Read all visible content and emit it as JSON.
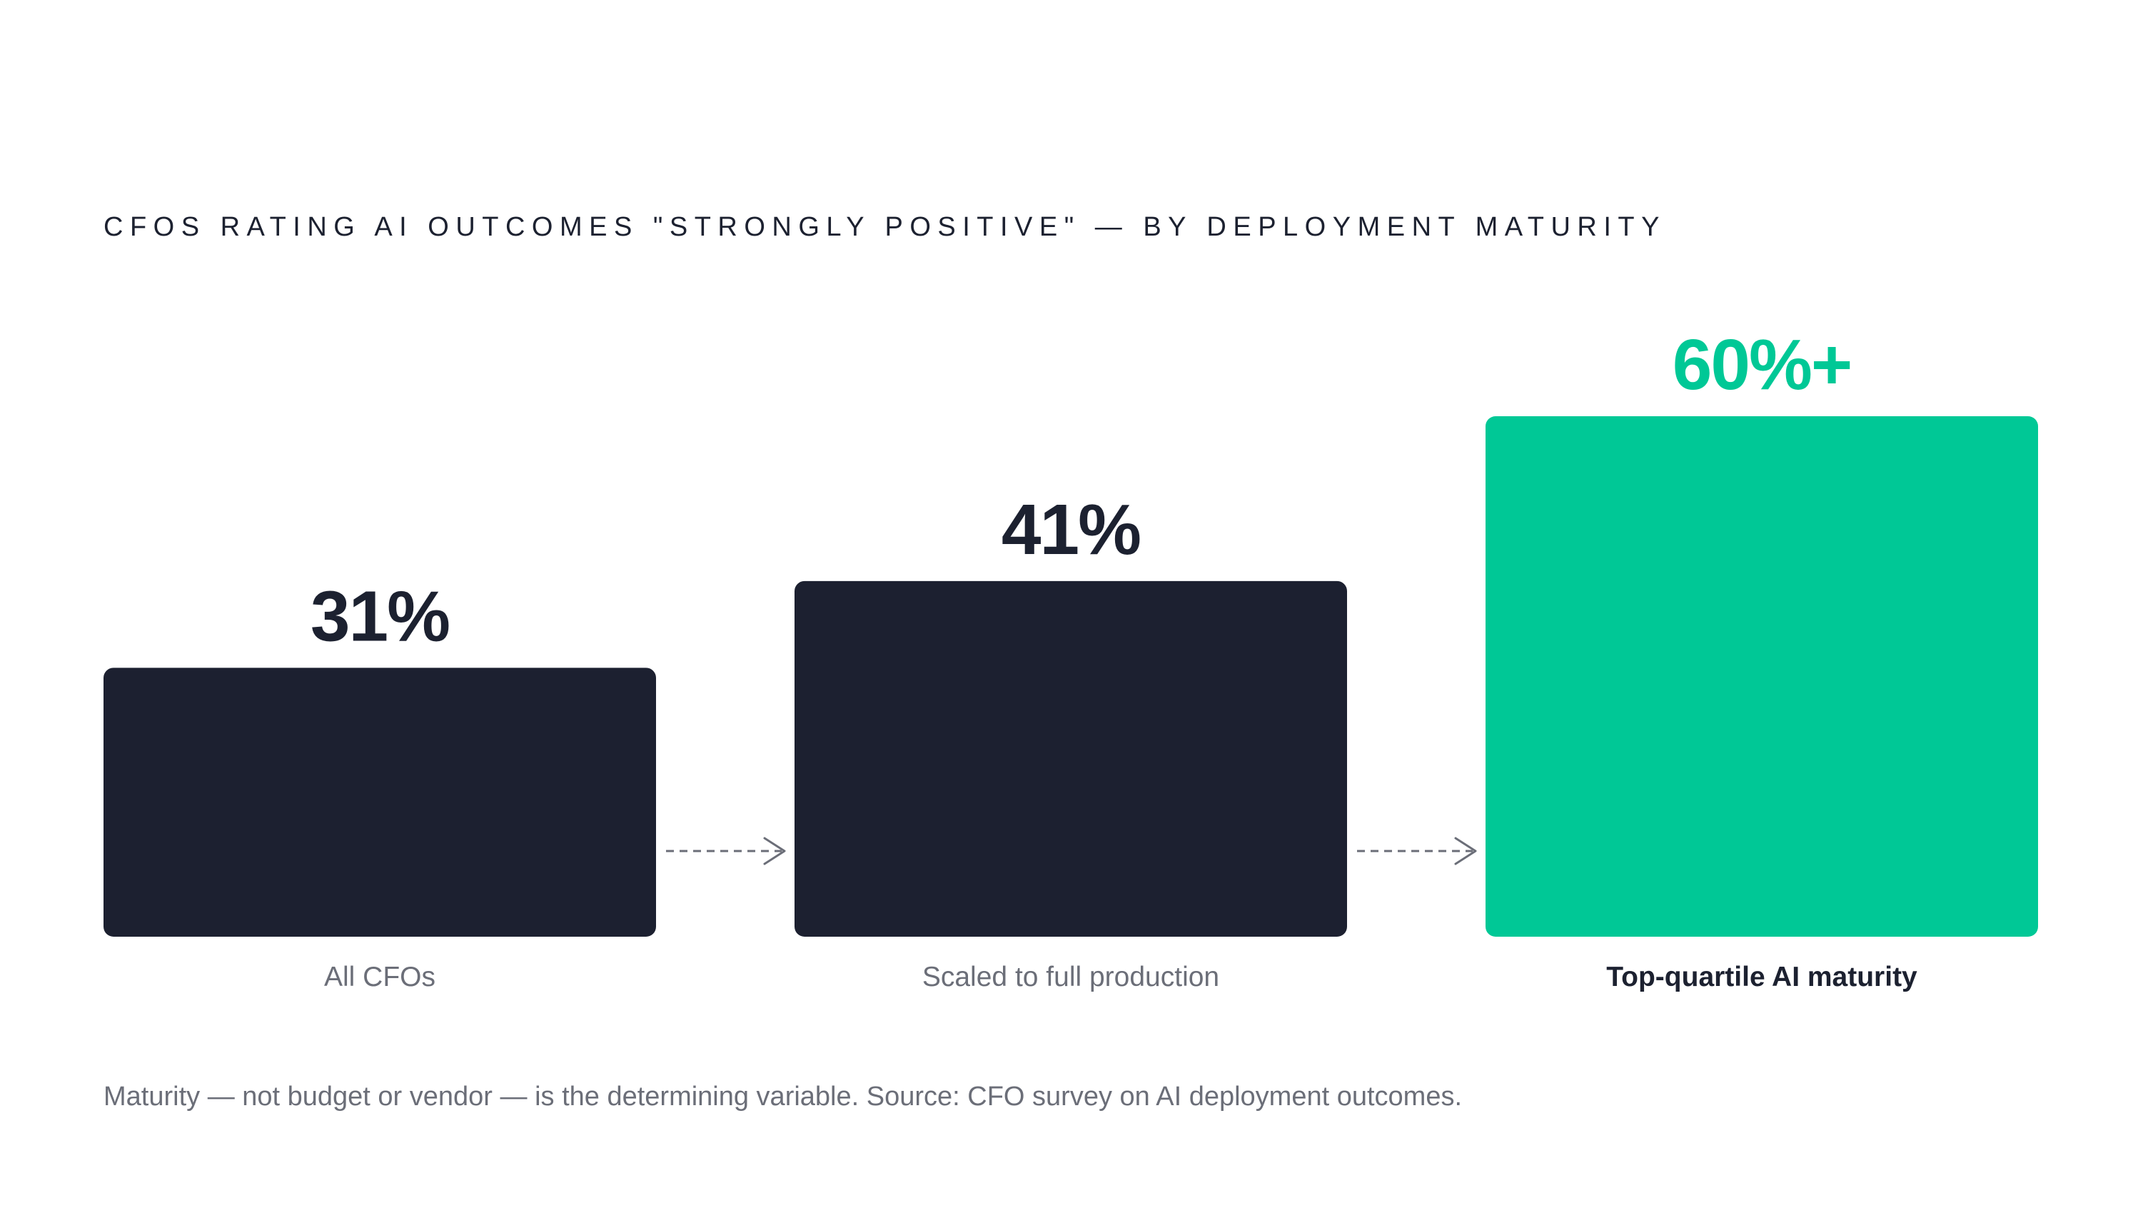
{
  "chart_data": {
    "type": "bar",
    "title": "CFOS RATING AI OUTCOMES \"STRONGLY POSITIVE\" — BY DEPLOYMENT MATURITY",
    "categories": [
      "All CFOs",
      "Scaled to full production",
      "Top-quartile AI maturity"
    ],
    "values": [
      31,
      41,
      60
    ],
    "value_labels": [
      "31%",
      "41%",
      "60%+"
    ],
    "highlight_index": 2,
    "connectors": "dashed arrows between consecutive bars",
    "xlabel": "",
    "ylabel": "",
    "grid": false,
    "colors": {
      "default_bar": "#1c2030",
      "highlight_bar": "#00c896",
      "default_label": "#1c2130",
      "highlight_label": "#00c896",
      "category_label": "#6b6e78",
      "highlight_category_label": "#1c2130",
      "connector": "#6b6e78"
    }
  },
  "footnote": "Maturity — not budget or vendor — is the determining variable.  Source: CFO survey on AI deployment outcomes."
}
